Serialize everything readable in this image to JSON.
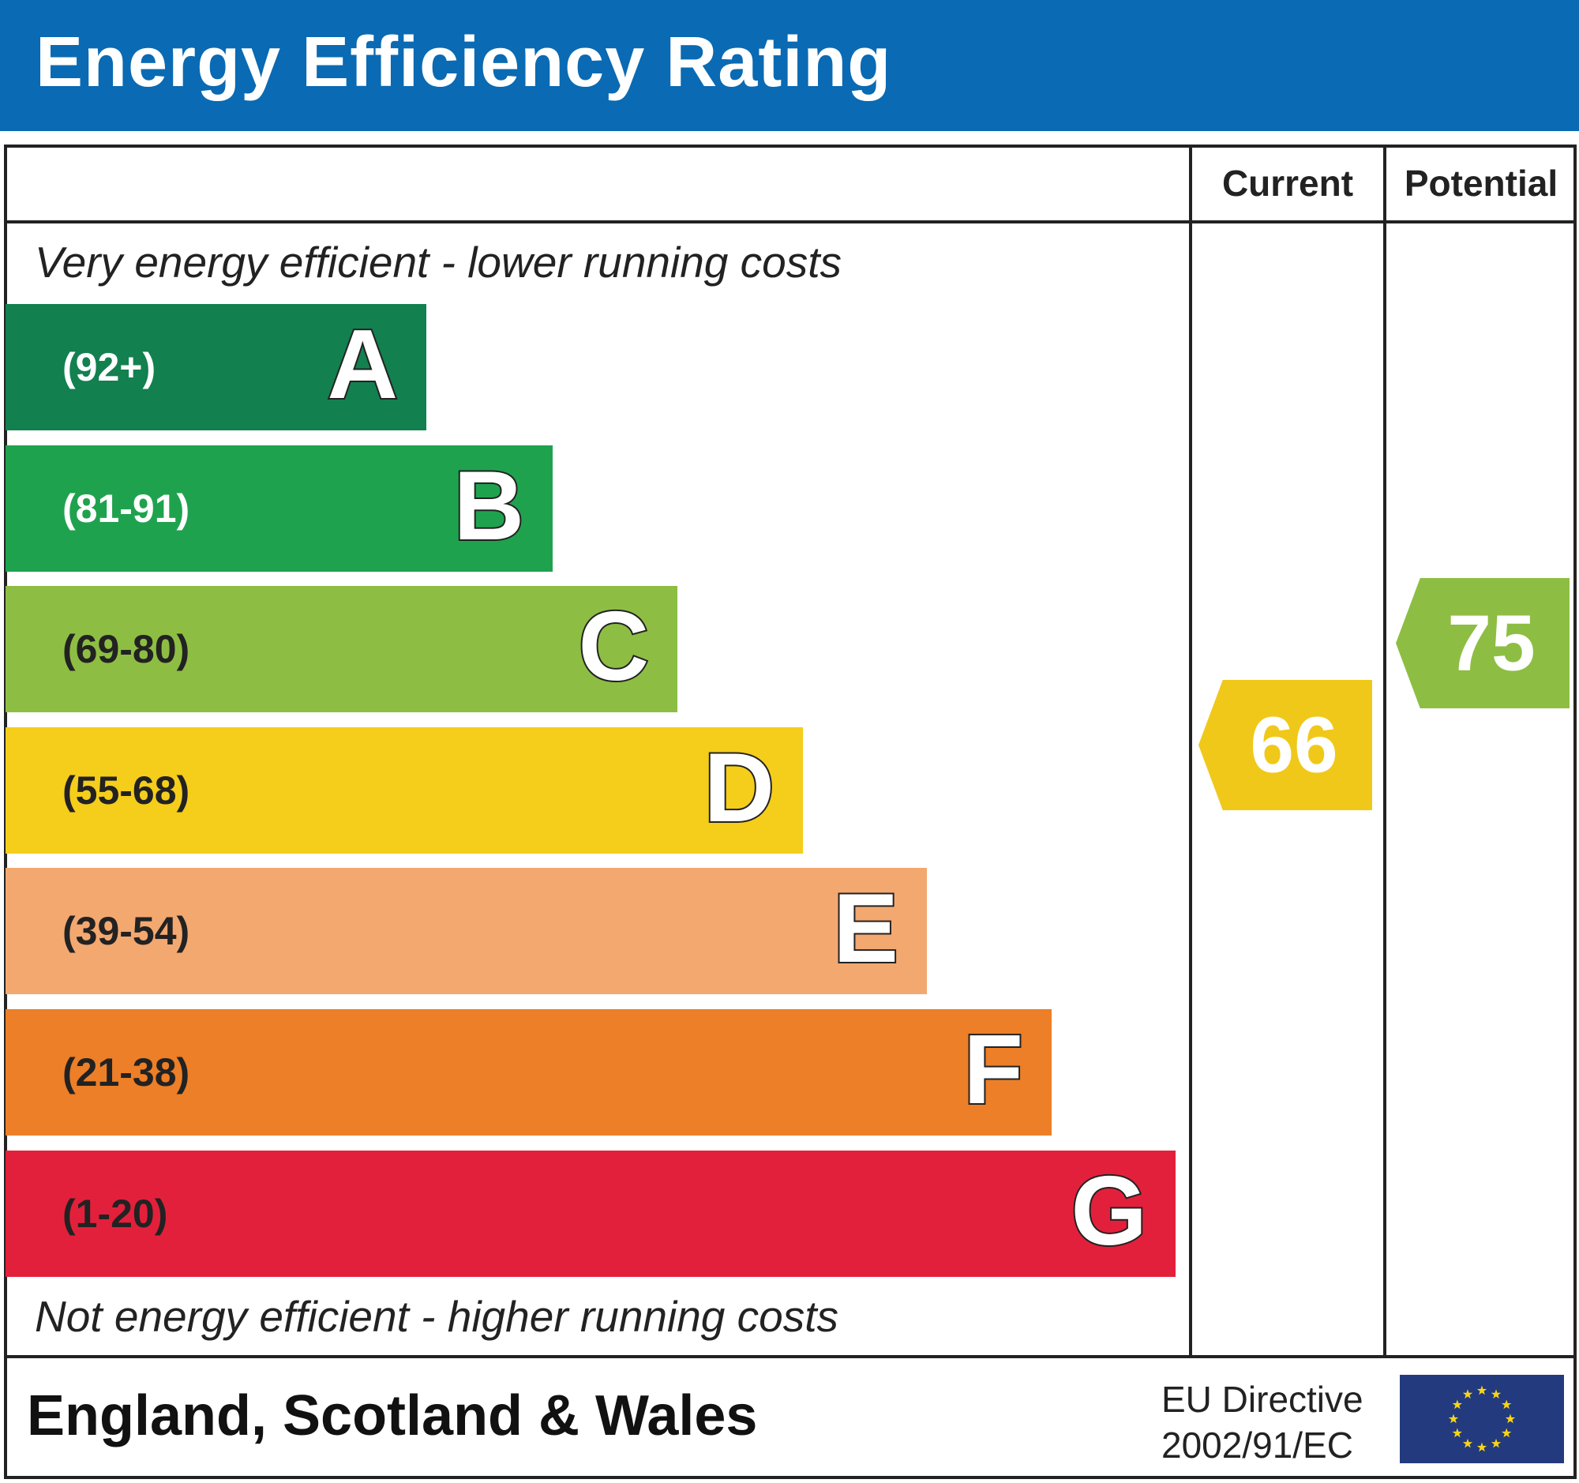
{
  "title": "Energy Efficiency Rating",
  "columns": {
    "current": "Current",
    "potential": "Potential"
  },
  "top_note": "Very energy efficient - lower running costs",
  "bottom_note": "Not energy efficient - higher running costs",
  "bands": [
    {
      "letter": "A",
      "range": "(92+)",
      "color": "#12804f",
      "text_color": "#ffffff"
    },
    {
      "letter": "B",
      "range": "(81-91)",
      "color": "#1fa24e",
      "text_color": "#ffffff"
    },
    {
      "letter": "C",
      "range": "(69-80)",
      "color": "#8dbe43",
      "text_color": "#222222"
    },
    {
      "letter": "D",
      "range": "(55-68)",
      "color": "#f5cd1b",
      "text_color": "#222222"
    },
    {
      "letter": "E",
      "range": "(39-54)",
      "color": "#f3a870",
      "text_color": "#222222"
    },
    {
      "letter": "F",
      "range": "(21-38)",
      "color": "#ec7f27",
      "text_color": "#222222"
    },
    {
      "letter": "G",
      "range": "(1-20)",
      "color": "#e3203b",
      "text_color": "#222222"
    }
  ],
  "current": {
    "value": "66",
    "band": "D",
    "color": "#f0c81a"
  },
  "potential": {
    "value": "75",
    "band": "C",
    "color": "#8dbe43"
  },
  "footer": {
    "region": "England, Scotland & Wales",
    "directive_line1": "EU Directive",
    "directive_line2": "2002/91/EC",
    "flag_icon": "eu-flag-icon"
  },
  "colors": {
    "header": "#0a6ab3"
  }
}
